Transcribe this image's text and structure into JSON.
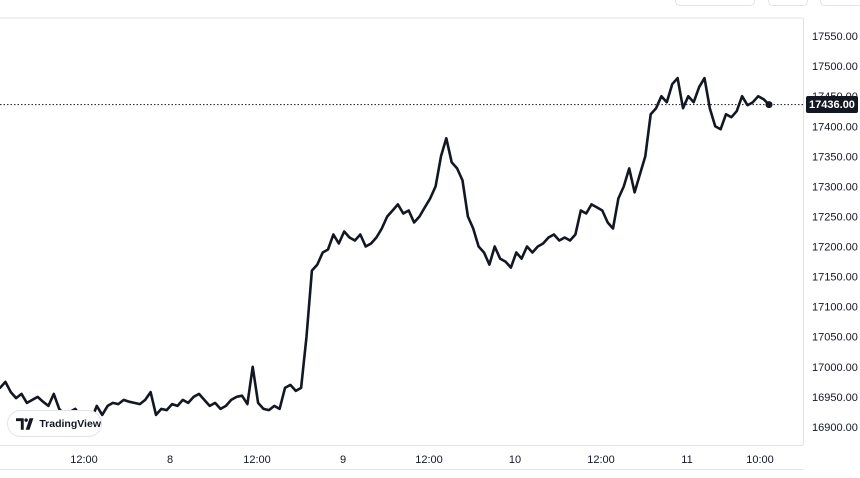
{
  "chart_data": {
    "type": "line",
    "yticks": [
      "17550.00",
      "17500.00",
      "17450.00",
      "17400.00",
      "17350.00",
      "17300.00",
      "17250.00",
      "17200.00",
      "17150.00",
      "17100.00",
      "17050.00",
      "17000.00",
      "16950.00",
      "16900.00"
    ],
    "xticks": [
      "12:00",
      "8",
      "12:00",
      "9",
      "12:00",
      "10",
      "12:00",
      "11",
      "10:00"
    ],
    "ylim": [
      16870,
      17580
    ],
    "last_price": "17436.00",
    "series": [
      {
        "values": [
          16965,
          16975,
          16958,
          16948,
          16955,
          16940,
          16945,
          16950,
          16942,
          16935,
          16955,
          16930,
          16920,
          16925,
          16930,
          16918,
          16925,
          16912,
          16935,
          16920,
          16935,
          16940,
          16938,
          16945,
          16942,
          16940,
          16938,
          16945,
          16958,
          16920,
          16930,
          16928,
          16938,
          16935,
          16945,
          16940,
          16950,
          16955,
          16945,
          16935,
          16940,
          16930,
          16935,
          16945,
          16950,
          16952,
          16938,
          17000,
          16940,
          16930,
          16928,
          16935,
          16930,
          16965,
          16970,
          16960,
          16965,
          17050,
          17160,
          17170,
          17190,
          17195,
          17220,
          17205,
          17225,
          17215,
          17210,
          17220,
          17200,
          17205,
          17215,
          17230,
          17250,
          17260,
          17270,
          17255,
          17260,
          17240,
          17250,
          17265,
          17280,
          17300,
          17350,
          17380,
          17340,
          17330,
          17310,
          17250,
          17230,
          17200,
          17190,
          17170,
          17200,
          17180,
          17175,
          17165,
          17190,
          17180,
          17200,
          17190,
          17200,
          17205,
          17215,
          17220,
          17210,
          17215,
          17210,
          17220,
          17260,
          17255,
          17270,
          17265,
          17260,
          17240,
          17230,
          17280,
          17300,
          17330,
          17290,
          17320,
          17350,
          17420,
          17430,
          17450,
          17440,
          17470,
          17480,
          17430,
          17450,
          17440,
          17465,
          17480,
          17430,
          17400,
          17395,
          17420,
          17415,
          17425,
          17450,
          17435,
          17440,
          17450,
          17445,
          17436
        ]
      }
    ]
  },
  "branding": {
    "logo_text": "TradingView"
  },
  "colors": {
    "line": "#131722",
    "grid_border": "#e0e3eb",
    "badge_bg": "#131722"
  }
}
